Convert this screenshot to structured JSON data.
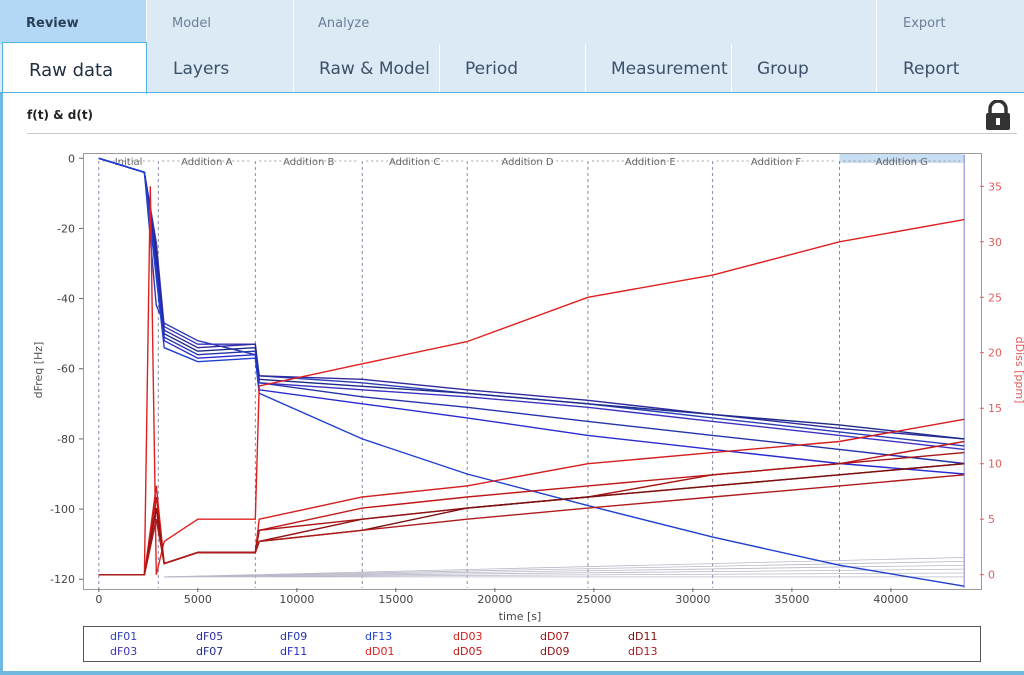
{
  "nav": {
    "groups": [
      {
        "name": "review",
        "label": "Review"
      },
      {
        "name": "model",
        "label": "Model"
      },
      {
        "name": "analyze",
        "label": "Analyze"
      },
      {
        "name": "export",
        "label": "Export"
      }
    ],
    "tabs": [
      {
        "label": "Raw data",
        "active": true
      },
      {
        "label": "Layers"
      },
      {
        "label": "Raw & Model"
      },
      {
        "label": "Period"
      },
      {
        "label": "Measurement"
      },
      {
        "label": "Group"
      },
      {
        "label": "Report"
      }
    ]
  },
  "panel": {
    "title": "f(t) & d(t)",
    "lock_icon": "lock-icon"
  },
  "chart_data": {
    "type": "line",
    "xlabel": "time [s]",
    "ylabel": "dFreq [Hz]",
    "y2label": "dDiss [ppm]",
    "xlim": [
      -800,
      44500
    ],
    "ylim": [
      -122.5,
      1.5
    ],
    "y2lim": [
      -1.2,
      38
    ],
    "xticks": [
      0,
      5000,
      10000,
      15000,
      20000,
      25000,
      30000,
      35000,
      40000
    ],
    "yticks": [
      0,
      -20,
      -40,
      -60,
      -80,
      -100,
      -120
    ],
    "y2ticks": [
      0,
      5,
      10,
      15,
      20,
      25,
      30,
      35
    ],
    "periods": [
      {
        "label": "Initial",
        "start": 0,
        "end": 3000
      },
      {
        "label": "Addition A",
        "start": 3000,
        "end": 7900
      },
      {
        "label": "Addition B",
        "start": 7900,
        "end": 13300
      },
      {
        "label": "Addition C",
        "start": 13300,
        "end": 18600
      },
      {
        "label": "Addition D",
        "start": 18600,
        "end": 24700
      },
      {
        "label": "Addition E",
        "start": 24700,
        "end": 31000
      },
      {
        "label": "Addition F",
        "start": 31000,
        "end": 37400
      },
      {
        "label": "Addition G",
        "start": 37400,
        "end": 43700,
        "selected": true
      }
    ],
    "grid": false,
    "legend_position": "bottom",
    "series": [
      {
        "name": "dF01",
        "axis": "y",
        "color": "#2a3fb6",
        "points": [
          [
            0,
            0
          ],
          [
            2300,
            -4
          ],
          [
            2900,
            -42
          ],
          [
            3300,
            -47
          ],
          [
            5000,
            -52
          ],
          [
            7900,
            -56
          ],
          [
            8100,
            -62
          ],
          [
            13300,
            -64
          ],
          [
            18600,
            -67
          ],
          [
            24700,
            -70
          ],
          [
            31000,
            -74
          ],
          [
            37400,
            -78
          ],
          [
            43700,
            -82
          ]
        ]
      },
      {
        "name": "dF03",
        "axis": "y",
        "color": "#3b33c0",
        "points": [
          [
            0,
            0
          ],
          [
            2300,
            -4
          ],
          [
            2900,
            -24
          ],
          [
            3300,
            -48
          ],
          [
            5000,
            -53
          ],
          [
            7900,
            -53
          ],
          [
            8100,
            -64
          ],
          [
            13300,
            -66
          ],
          [
            18600,
            -68
          ],
          [
            24700,
            -71
          ],
          [
            31000,
            -75
          ],
          [
            37400,
            -79
          ],
          [
            43700,
            -83
          ]
        ]
      },
      {
        "name": "dF05",
        "axis": "y",
        "color": "#2f2a9e",
        "points": [
          [
            0,
            0
          ],
          [
            2300,
            -4
          ],
          [
            2900,
            -26
          ],
          [
            3300,
            -49
          ],
          [
            5000,
            -54
          ],
          [
            7900,
            -53
          ],
          [
            8100,
            -62
          ],
          [
            13300,
            -63
          ],
          [
            18600,
            -66
          ],
          [
            24700,
            -69
          ],
          [
            31000,
            -73
          ],
          [
            37400,
            -77
          ],
          [
            43700,
            -80
          ]
        ]
      },
      {
        "name": "dF07",
        "axis": "y",
        "color": "#1c2a8a",
        "points": [
          [
            0,
            0
          ],
          [
            2300,
            -4
          ],
          [
            2900,
            -28
          ],
          [
            3300,
            -50
          ],
          [
            5000,
            -55
          ],
          [
            7900,
            -54
          ],
          [
            8100,
            -63
          ],
          [
            13300,
            -65
          ],
          [
            18600,
            -67
          ],
          [
            24700,
            -70
          ],
          [
            31000,
            -73
          ],
          [
            37400,
            -76
          ],
          [
            43700,
            -80
          ]
        ]
      },
      {
        "name": "dF09",
        "axis": "y",
        "color": "#2333aa",
        "points": [
          [
            0,
            0
          ],
          [
            2300,
            -4
          ],
          [
            2900,
            -30
          ],
          [
            3300,
            -51
          ],
          [
            5000,
            -56
          ],
          [
            7900,
            -55
          ],
          [
            8100,
            -64
          ],
          [
            13300,
            -68
          ],
          [
            18600,
            -71
          ],
          [
            24700,
            -75
          ],
          [
            31000,
            -79
          ],
          [
            37400,
            -83
          ],
          [
            43700,
            -87
          ]
        ]
      },
      {
        "name": "dF11",
        "axis": "y",
        "color": "#2a2ad0",
        "points": [
          [
            0,
            0
          ],
          [
            2300,
            -4
          ],
          [
            2900,
            -32
          ],
          [
            3300,
            -52
          ],
          [
            5000,
            -57
          ],
          [
            7900,
            -56
          ],
          [
            8100,
            -66
          ],
          [
            13300,
            -70
          ],
          [
            18600,
            -74
          ],
          [
            24700,
            -79
          ],
          [
            31000,
            -83
          ],
          [
            37400,
            -87
          ],
          [
            43700,
            -90
          ]
        ]
      },
      {
        "name": "dF13",
        "axis": "y",
        "color": "#1e3fd0",
        "points": [
          [
            0,
            0
          ],
          [
            2300,
            -4
          ],
          [
            2900,
            -34
          ],
          [
            3300,
            -54
          ],
          [
            5000,
            -58
          ],
          [
            7900,
            -57
          ],
          [
            8100,
            -67
          ],
          [
            13300,
            -80
          ],
          [
            18600,
            -90
          ],
          [
            24700,
            -99
          ],
          [
            31000,
            -108
          ],
          [
            37400,
            -116
          ],
          [
            43700,
            -122
          ]
        ]
      },
      {
        "name": "dD01",
        "axis": "y2",
        "color": "#e02020",
        "points": [
          [
            0,
            0
          ],
          [
            2300,
            0
          ],
          [
            2600,
            35
          ],
          [
            2900,
            0
          ],
          [
            3300,
            3
          ],
          [
            5000,
            5
          ],
          [
            7900,
            5
          ],
          [
            8100,
            17
          ],
          [
            13300,
            19
          ],
          [
            18600,
            21
          ],
          [
            24700,
            25
          ],
          [
            31000,
            27
          ],
          [
            37400,
            30
          ],
          [
            43700,
            32
          ]
        ]
      },
      {
        "name": "dD03",
        "axis": "y2",
        "color": "#d41e1e",
        "points": [
          [
            0,
            0
          ],
          [
            2300,
            0
          ],
          [
            2900,
            8
          ],
          [
            3300,
            1
          ],
          [
            5000,
            2
          ],
          [
            7900,
            2
          ],
          [
            8100,
            5
          ],
          [
            13300,
            7
          ],
          [
            18600,
            8
          ],
          [
            24700,
            10
          ],
          [
            31000,
            11
          ],
          [
            37400,
            12
          ],
          [
            43700,
            14
          ]
        ]
      },
      {
        "name": "dD05",
        "axis": "y2",
        "color": "#c01818",
        "points": [
          [
            0,
            0
          ],
          [
            2300,
            0
          ],
          [
            2900,
            7
          ],
          [
            3300,
            1
          ],
          [
            5000,
            2
          ],
          [
            7900,
            2
          ],
          [
            8100,
            4
          ],
          [
            13300,
            6
          ],
          [
            18600,
            7
          ],
          [
            24700,
            8
          ],
          [
            31000,
            9
          ],
          [
            37400,
            10
          ],
          [
            43700,
            12
          ]
        ]
      },
      {
        "name": "dD07",
        "axis": "y2",
        "color": "#a81414",
        "points": [
          [
            0,
            0
          ],
          [
            2300,
            0
          ],
          [
            2900,
            6
          ],
          [
            3300,
            1
          ],
          [
            5000,
            2
          ],
          [
            7900,
            2
          ],
          [
            8100,
            4
          ],
          [
            13300,
            5
          ],
          [
            18600,
            6
          ],
          [
            24700,
            7
          ],
          [
            31000,
            9
          ],
          [
            37400,
            10
          ],
          [
            43700,
            11
          ]
        ]
      },
      {
        "name": "dD09",
        "axis": "y2",
        "color": "#901212",
        "points": [
          [
            0,
            0
          ],
          [
            2300,
            0
          ],
          [
            2900,
            6
          ],
          [
            3300,
            1
          ],
          [
            5000,
            2
          ],
          [
            7900,
            2
          ],
          [
            8100,
            3
          ],
          [
            13300,
            5
          ],
          [
            18600,
            6
          ],
          [
            24700,
            7
          ],
          [
            31000,
            8
          ],
          [
            37400,
            9
          ],
          [
            43700,
            10
          ]
        ]
      },
      {
        "name": "dD11",
        "axis": "y2",
        "color": "#7a1010",
        "points": [
          [
            0,
            0
          ],
          [
            2300,
            0
          ],
          [
            2900,
            5
          ],
          [
            3300,
            1
          ],
          [
            5000,
            2
          ],
          [
            7900,
            2
          ],
          [
            8100,
            3
          ],
          [
            13300,
            4
          ],
          [
            18600,
            6
          ],
          [
            24700,
            7
          ],
          [
            31000,
            8
          ],
          [
            37400,
            9
          ],
          [
            43700,
            10
          ]
        ]
      },
      {
        "name": "dD13",
        "axis": "y2",
        "color": "#b01a1a",
        "points": [
          [
            0,
            0
          ],
          [
            2300,
            0
          ],
          [
            2900,
            5
          ],
          [
            3300,
            1
          ],
          [
            5000,
            2
          ],
          [
            7900,
            2
          ],
          [
            8100,
            3
          ],
          [
            13300,
            4
          ],
          [
            18600,
            5
          ],
          [
            24700,
            6
          ],
          [
            31000,
            7
          ],
          [
            37400,
            8
          ],
          [
            43700,
            9
          ]
        ]
      }
    ]
  },
  "legend": {
    "items": [
      "dF01",
      "dF05",
      "dF09",
      "dF13",
      "dD03",
      "dD07",
      "dD11",
      "dF03",
      "dF07",
      "dF11",
      "dD01",
      "dD05",
      "dD09",
      "dD13"
    ]
  }
}
